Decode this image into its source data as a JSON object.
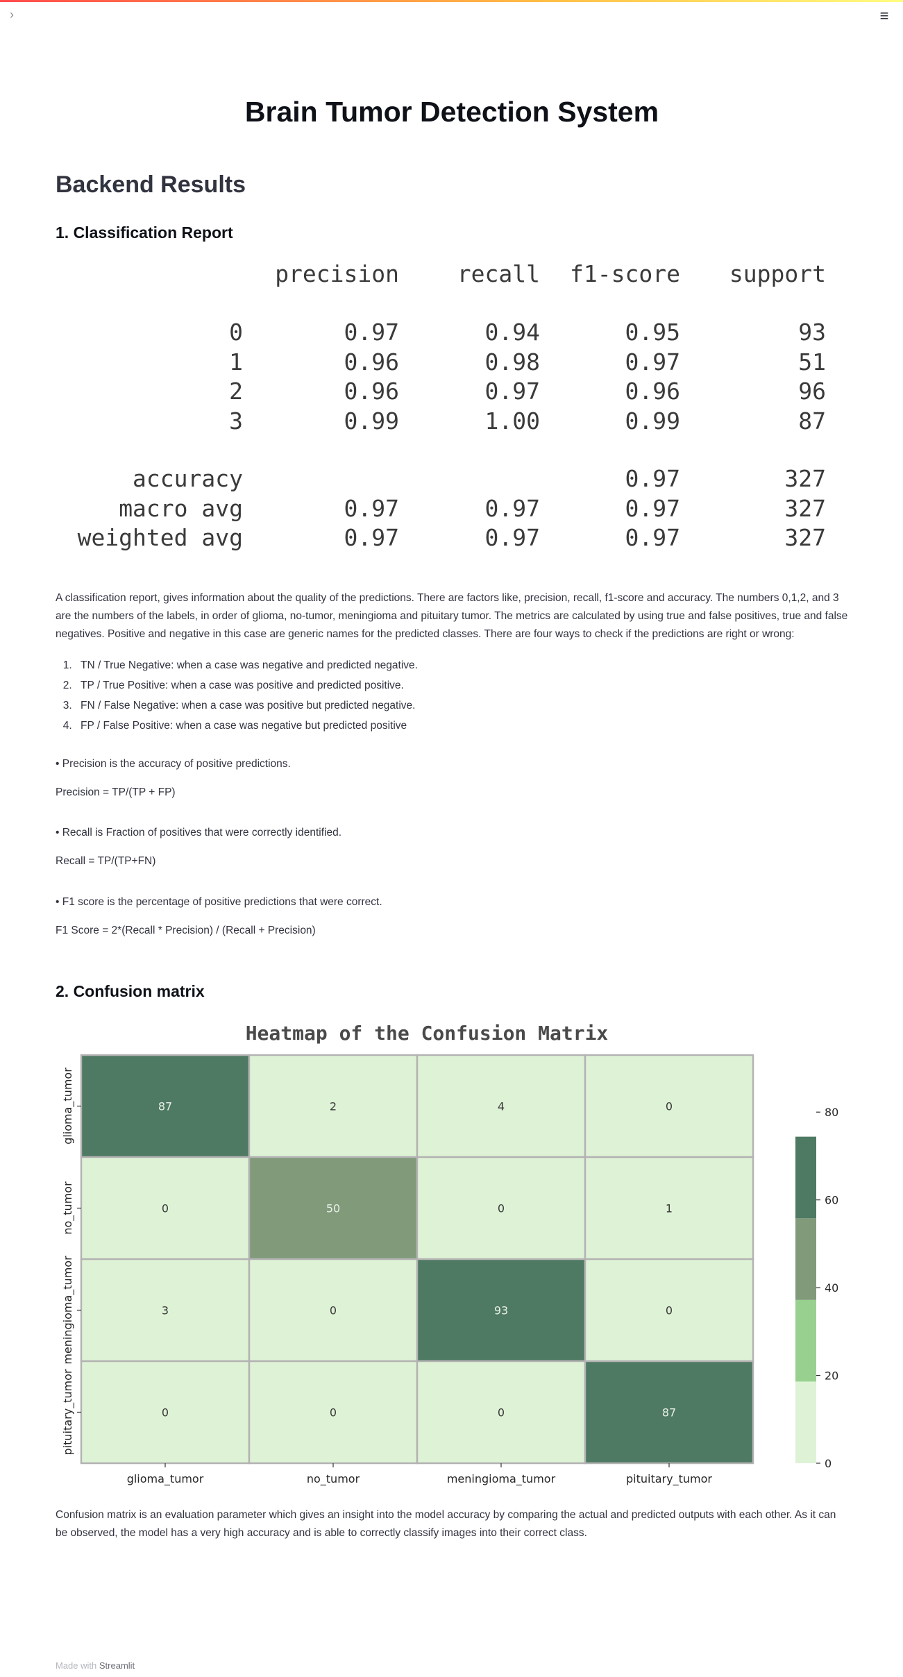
{
  "app": {
    "title": "Brain Tumor Detection System",
    "footer_prefix": "Made with",
    "footer_link": "Streamlit",
    "accent_color": "#ff4b4b"
  },
  "icons": {
    "sidebar_toggle": "chevron-right-icon",
    "menu": "hamburger-menu-icon"
  },
  "section": {
    "heading": "Backend Results",
    "classification_heading": "1. Classification Report",
    "confusion_heading": "2. Confusion matrix"
  },
  "report": {
    "columns": [
      "precision",
      "recall",
      "f1-score",
      "support"
    ],
    "rows": [
      {
        "label": "0",
        "precision": "0.97",
        "recall": "0.94",
        "f1": "0.95",
        "support": "93"
      },
      {
        "label": "1",
        "precision": "0.96",
        "recall": "0.98",
        "f1": "0.97",
        "support": "51"
      },
      {
        "label": "2",
        "precision": "0.96",
        "recall": "0.97",
        "f1": "0.96",
        "support": "96"
      },
      {
        "label": "3",
        "precision": "0.99",
        "recall": "1.00",
        "f1": "0.99",
        "support": "87"
      }
    ],
    "summary": [
      {
        "label": "accuracy",
        "precision": "",
        "recall": "",
        "f1": "0.97",
        "support": "327"
      },
      {
        "label": "macro avg",
        "precision": "0.97",
        "recall": "0.97",
        "f1": "0.97",
        "support": "327"
      },
      {
        "label": "weighted avg",
        "precision": "0.97",
        "recall": "0.97",
        "f1": "0.97",
        "support": "327"
      }
    ]
  },
  "text": {
    "report_description": "A classification report, gives information about the quality of the predictions. There are factors like, precision, recall, f1-score and accuracy. The numbers 0,1,2, and 3 are the numbers of the labels, in order of glioma, no-tumor, meningioma and pituitary tumor. The metrics are calculated by using true and false positives, true and false negatives. Positive and negative in this case are generic names for the predicted classes. There are four ways to check if the predictions are right or wrong:",
    "ways": [
      "TN / True Negative: when a case was negative and predicted negative.",
      "TP / True Positive: when a case was positive and predicted positive.",
      "FN / False Negative: when a case was positive but predicted negative.",
      "FP / False Positive: when a case was negative but predicted positive"
    ],
    "precision_def": "• Precision is the accuracy of positive predictions.",
    "precision_formula": "Precision = TP/(TP + FP)",
    "recall_def": "• Recall is Fraction of positives that were correctly identified.",
    "recall_formula": "Recall = TP/(TP+FN)",
    "f1_def": "• F1 score is the percentage of positive predictions that were correct.",
    "f1_formula": "F1 Score = 2*(Recall * Precision) / (Recall + Precision)",
    "confusion_description": "Confusion matrix is an evaluation parameter which gives an insight into the model accuracy by comparing the actual and predicted outputs with each other. As it can be observed, the model has a very high accuracy and is able to correctly classify images into their correct class."
  },
  "chart_data": {
    "type": "heatmap",
    "title": "Heatmap of the Confusion Matrix",
    "x_categories": [
      "glioma_tumor",
      "no_tumor",
      "meningioma_tumor",
      "pituitary_tumor"
    ],
    "y_categories": [
      "glioma_tumor",
      "no_tumor",
      "meningioma_tumor",
      "pituitary_tumor"
    ],
    "values": [
      [
        87,
        2,
        4,
        0
      ],
      [
        0,
        50,
        0,
        1
      ],
      [
        3,
        0,
        93,
        0
      ],
      [
        0,
        0,
        0,
        87
      ]
    ],
    "colorbar_ticks": [
      0,
      20,
      40,
      60,
      80
    ],
    "colorbar_range": [
      0,
      93
    ],
    "colors": [
      "#def3d6",
      "#98d18f",
      "#809a7a",
      "#4e7962"
    ],
    "color_bounds": [
      0,
      18.6,
      37.2,
      55.8,
      74.4,
      93
    ],
    "xlabel": "",
    "ylabel": "",
    "grid_color": "#b3b3b3"
  }
}
